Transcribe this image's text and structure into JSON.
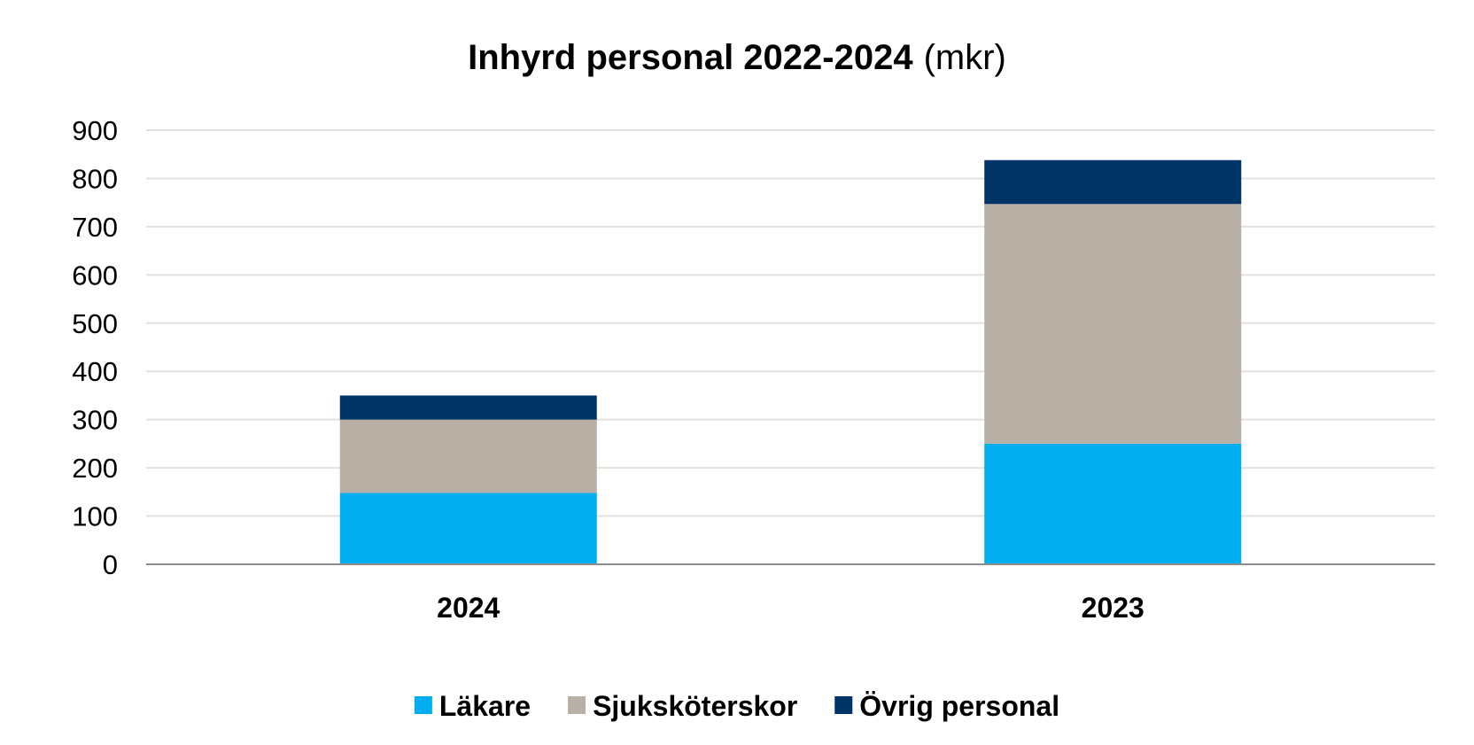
{
  "chart_data": {
    "type": "bar",
    "stacked": true,
    "title": "Inhyrd personal 2022-2024",
    "title_unit": "(mkr)",
    "xlabel": "",
    "ylabel": "",
    "categories": [
      "2024",
      "2023"
    ],
    "series": [
      {
        "name": "Läkare",
        "color": "#00aeef",
        "values": [
          148,
          250
        ]
      },
      {
        "name": "Sjuksköterskor",
        "color": "#b8afa5",
        "values": [
          152,
          497
        ]
      },
      {
        "name": "Övrig personal",
        "color": "#003366",
        "values": [
          50,
          91
        ]
      }
    ],
    "ylim": [
      0,
      900
    ],
    "yticks": [
      "0",
      "100",
      "200",
      "300",
      "400",
      "500",
      "600",
      "700",
      "800",
      "900"
    ],
    "grid": true,
    "legend_position": "bottom"
  }
}
